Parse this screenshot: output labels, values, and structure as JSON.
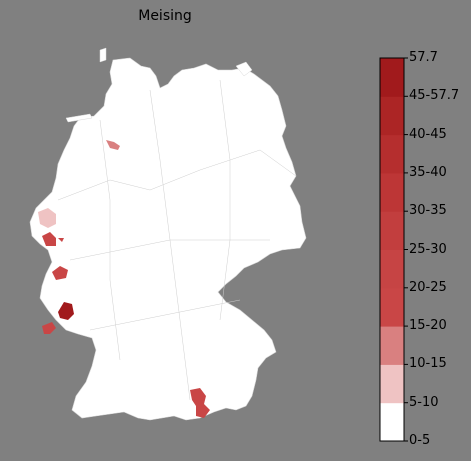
{
  "map": {
    "title": "Meising",
    "country": "Germany"
  },
  "legend": {
    "bins": [
      {
        "label": "0-5",
        "color": "#ffffff"
      },
      {
        "label": "5-10",
        "color": "#efc3c3"
      },
      {
        "label": "10-15",
        "color": "#d98080"
      },
      {
        "label": "15-20",
        "color": "#c94646"
      },
      {
        "label": "20-25",
        "color": "#c64444"
      },
      {
        "label": "25-30",
        "color": "#c23e3e"
      },
      {
        "label": "30-35",
        "color": "#bd3636"
      },
      {
        "label": "35-40",
        "color": "#b52e2e"
      },
      {
        "label": "40-45",
        "color": "#ac2525"
      },
      {
        "label": "45-57.7",
        "color": "#a11a1c"
      },
      {
        "label": "57.7",
        "color": "#920f18"
      }
    ],
    "tick_labels": [
      "0-5",
      "5-10",
      "10-15",
      "15-20",
      "20-25",
      "25-30",
      "30-35",
      "35-40",
      "40-45",
      "45-57.7",
      "57.7"
    ]
  },
  "highlighted_regions": [
    {
      "name": "region-north",
      "bin": "10-15"
    },
    {
      "name": "region-west-1",
      "bin": "5-10"
    },
    {
      "name": "region-west-2",
      "bin": "15-20"
    },
    {
      "name": "region-west-3",
      "bin": "15-20"
    },
    {
      "name": "region-west-4",
      "bin": "45-57.7"
    },
    {
      "name": "region-southwest",
      "bin": "15-20"
    },
    {
      "name": "region-south",
      "bin": "15-20"
    }
  ],
  "colors": {
    "background": "#808080",
    "land": "#ffffff",
    "border": "#000000"
  }
}
